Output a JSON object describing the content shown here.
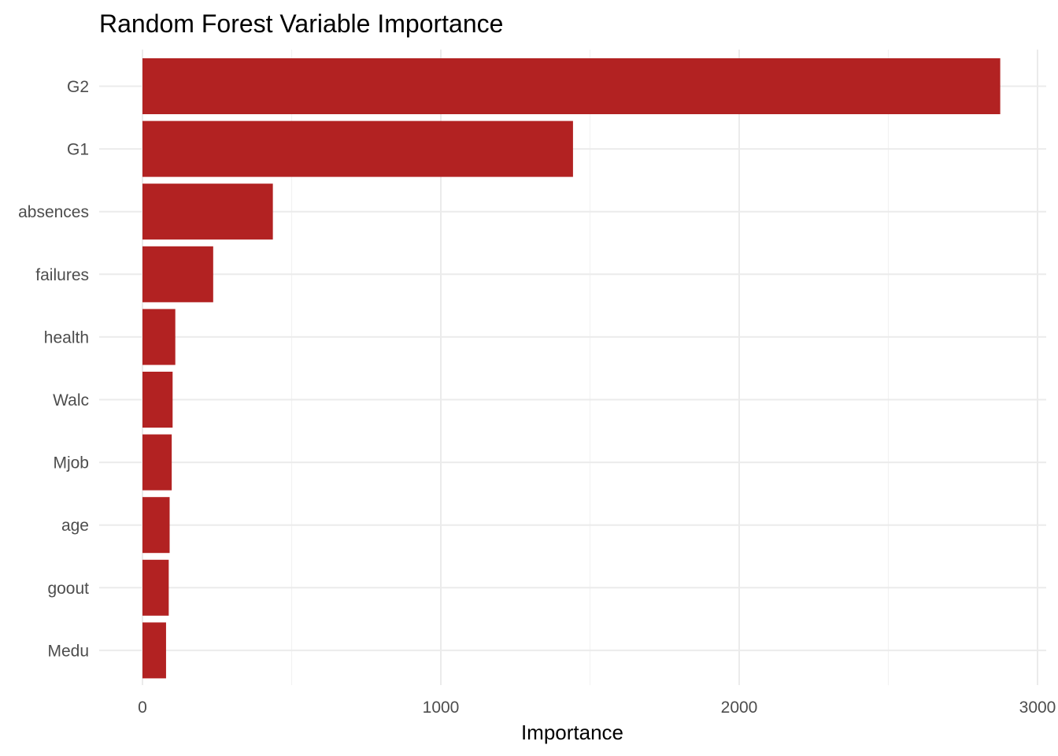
{
  "chart_data": {
    "type": "bar",
    "orientation": "horizontal",
    "title": "Random Forest Variable Importance",
    "xlabel": "Importance",
    "ylabel": "",
    "xlim": [
      0,
      3000
    ],
    "x_ticks": [
      0,
      1000,
      2000,
      3000
    ],
    "x_tick_labels": [
      "0",
      "1000",
      "2000",
      "3000"
    ],
    "categories": [
      "G2",
      "G1",
      "absences",
      "failures",
      "health",
      "Walc",
      "Mjob",
      "age",
      "goout",
      "Medu"
    ],
    "values": [
      2875,
      1443,
      437,
      237,
      110,
      101,
      98,
      91,
      88,
      79
    ],
    "bar_color": "#b22222",
    "grid": true,
    "legend": "none"
  }
}
